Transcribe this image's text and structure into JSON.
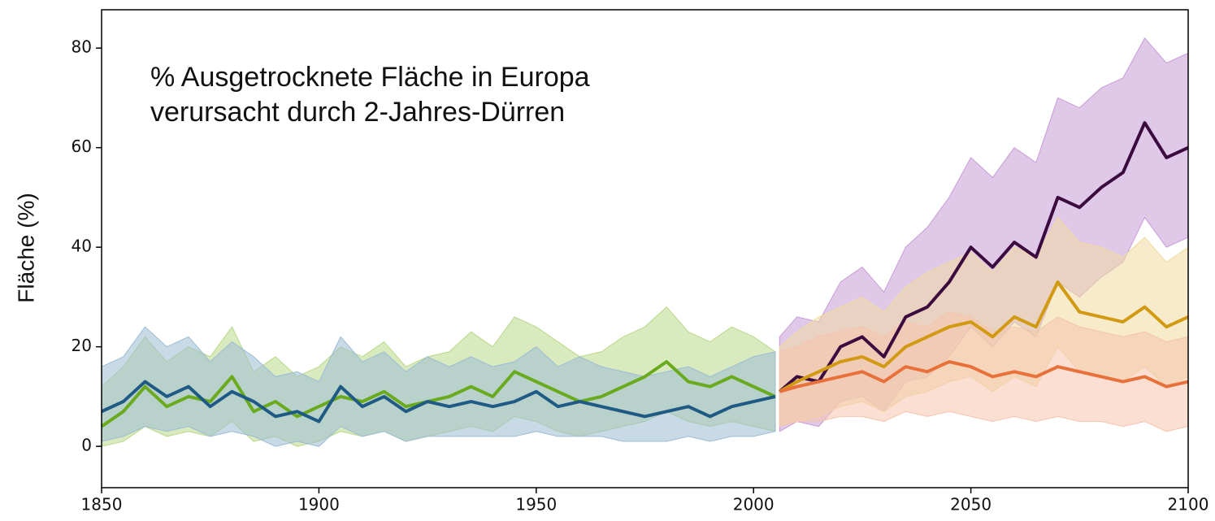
{
  "chart_data": {
    "type": "line",
    "title": [
      "% Ausgetrocknete Fläche in Europa",
      "verursacht durch 2-Jahres-Dürren"
    ],
    "y_label": "Fläche (%)",
    "xlim": [
      1850,
      2100
    ],
    "ylim": [
      -8.3,
      87.7
    ],
    "xticks": [
      1850,
      1900,
      1950,
      2000,
      2050,
      2100
    ],
    "yticks": [
      0,
      20,
      40,
      60,
      80
    ],
    "series": [
      {
        "color": "#6aaa1e",
        "band_color": "#b9d98a",
        "x": [
          1850,
          1855,
          1860,
          1865,
          1870,
          1875,
          1880,
          1885,
          1890,
          1895,
          1900,
          1905,
          1910,
          1915,
          1920,
          1925,
          1930,
          1935,
          1940,
          1945,
          1950,
          1955,
          1960,
          1965,
          1970,
          1975,
          1980,
          1985,
          1990,
          1995,
          2000,
          2005
        ],
        "values": [
          4,
          7,
          12,
          8,
          10,
          9,
          14,
          7,
          9,
          6,
          8,
          10,
          9,
          11,
          8,
          9,
          10,
          12,
          10,
          15,
          13,
          11,
          9,
          10,
          12,
          14,
          17,
          13,
          12,
          14,
          12,
          10
        ],
        "lower": [
          0,
          1,
          4,
          2,
          3,
          2,
          5,
          1,
          2,
          0,
          1,
          3,
          2,
          3,
          1,
          2,
          3,
          4,
          3,
          6,
          5,
          3,
          2,
          3,
          4,
          5,
          7,
          5,
          4,
          5,
          4,
          3
        ],
        "upper": [
          12,
          16,
          22,
          17,
          20,
          18,
          24,
          15,
          18,
          14,
          16,
          20,
          18,
          21,
          16,
          18,
          19,
          23,
          20,
          26,
          24,
          21,
          18,
          19,
          22,
          24,
          28,
          23,
          21,
          24,
          22,
          19
        ]
      },
      {
        "color": "#1f5a85",
        "band_color": "#9dbcd4",
        "x": [
          1850,
          1855,
          1860,
          1865,
          1870,
          1875,
          1880,
          1885,
          1890,
          1895,
          1900,
          1905,
          1910,
          1915,
          1920,
          1925,
          1930,
          1935,
          1940,
          1945,
          1950,
          1955,
          1960,
          1965,
          1970,
          1975,
          1980,
          1985,
          1990,
          1995,
          2000,
          2005
        ],
        "values": [
          7,
          9,
          13,
          10,
          12,
          8,
          11,
          9,
          6,
          7,
          5,
          12,
          8,
          10,
          7,
          9,
          8,
          9,
          8,
          9,
          11,
          8,
          9,
          8,
          7,
          6,
          7,
          8,
          6,
          8,
          9,
          10
        ],
        "lower": [
          1,
          2,
          4,
          3,
          4,
          2,
          3,
          2,
          0,
          1,
          0,
          4,
          2,
          3,
          1,
          2,
          2,
          2,
          2,
          2,
          3,
          2,
          2,
          2,
          1,
          1,
          1,
          2,
          1,
          2,
          2,
          3
        ],
        "upper": [
          16,
          18,
          24,
          20,
          22,
          17,
          21,
          18,
          14,
          15,
          13,
          22,
          17,
          19,
          15,
          18,
          16,
          18,
          16,
          17,
          20,
          16,
          18,
          16,
          15,
          14,
          15,
          16,
          14,
          16,
          18,
          19
        ]
      },
      {
        "color": "#3b0a3e",
        "band_color": "#c79bd6",
        "x": [
          2006,
          2010,
          2015,
          2020,
          2025,
          2030,
          2035,
          2040,
          2045,
          2050,
          2055,
          2060,
          2065,
          2070,
          2075,
          2080,
          2085,
          2090,
          2095,
          2100
        ],
        "values": [
          11,
          14,
          13,
          20,
          22,
          18,
          26,
          28,
          33,
          40,
          36,
          41,
          38,
          50,
          48,
          52,
          55,
          65,
          58,
          60
        ],
        "lower": [
          3,
          5,
          4,
          9,
          10,
          7,
          13,
          14,
          18,
          24,
          20,
          25,
          22,
          33,
          30,
          34,
          37,
          46,
          40,
          42
        ],
        "upper": [
          22,
          26,
          25,
          33,
          36,
          31,
          40,
          44,
          50,
          58,
          54,
          60,
          57,
          70,
          68,
          72,
          74,
          82,
          77,
          79
        ]
      },
      {
        "color": "#d19a12",
        "band_color": "#f0dba0",
        "x": [
          2006,
          2010,
          2015,
          2020,
          2025,
          2030,
          2035,
          2040,
          2045,
          2050,
          2055,
          2060,
          2065,
          2070,
          2075,
          2080,
          2085,
          2090,
          2095,
          2100
        ],
        "values": [
          11,
          13,
          15,
          17,
          18,
          16,
          20,
          22,
          24,
          25,
          22,
          26,
          24,
          33,
          27,
          26,
          25,
          28,
          24,
          26
        ],
        "lower": [
          4,
          5,
          6,
          8,
          9,
          7,
          10,
          11,
          13,
          14,
          11,
          14,
          12,
          20,
          15,
          14,
          13,
          16,
          12,
          14
        ],
        "upper": [
          20,
          23,
          26,
          28,
          30,
          27,
          32,
          35,
          37,
          39,
          35,
          40,
          38,
          46,
          41,
          40,
          38,
          42,
          37,
          40
        ]
      },
      {
        "color": "#e8703a",
        "band_color": "#f5c4ad",
        "x": [
          2006,
          2010,
          2015,
          2020,
          2025,
          2030,
          2035,
          2040,
          2045,
          2050,
          2055,
          2060,
          2065,
          2070,
          2075,
          2080,
          2085,
          2090,
          2095,
          2100
        ],
        "values": [
          11,
          12,
          13,
          14,
          15,
          13,
          16,
          15,
          17,
          16,
          14,
          15,
          14,
          16,
          15,
          14,
          13,
          14,
          12,
          13
        ],
        "lower": [
          4,
          5,
          5,
          6,
          6,
          5,
          7,
          6,
          7,
          6,
          5,
          6,
          5,
          6,
          5,
          5,
          4,
          5,
          3,
          4
        ],
        "upper": [
          19,
          20,
          22,
          23,
          24,
          22,
          25,
          24,
          27,
          26,
          23,
          24,
          23,
          26,
          24,
          23,
          22,
          23,
          21,
          22
        ]
      }
    ]
  }
}
